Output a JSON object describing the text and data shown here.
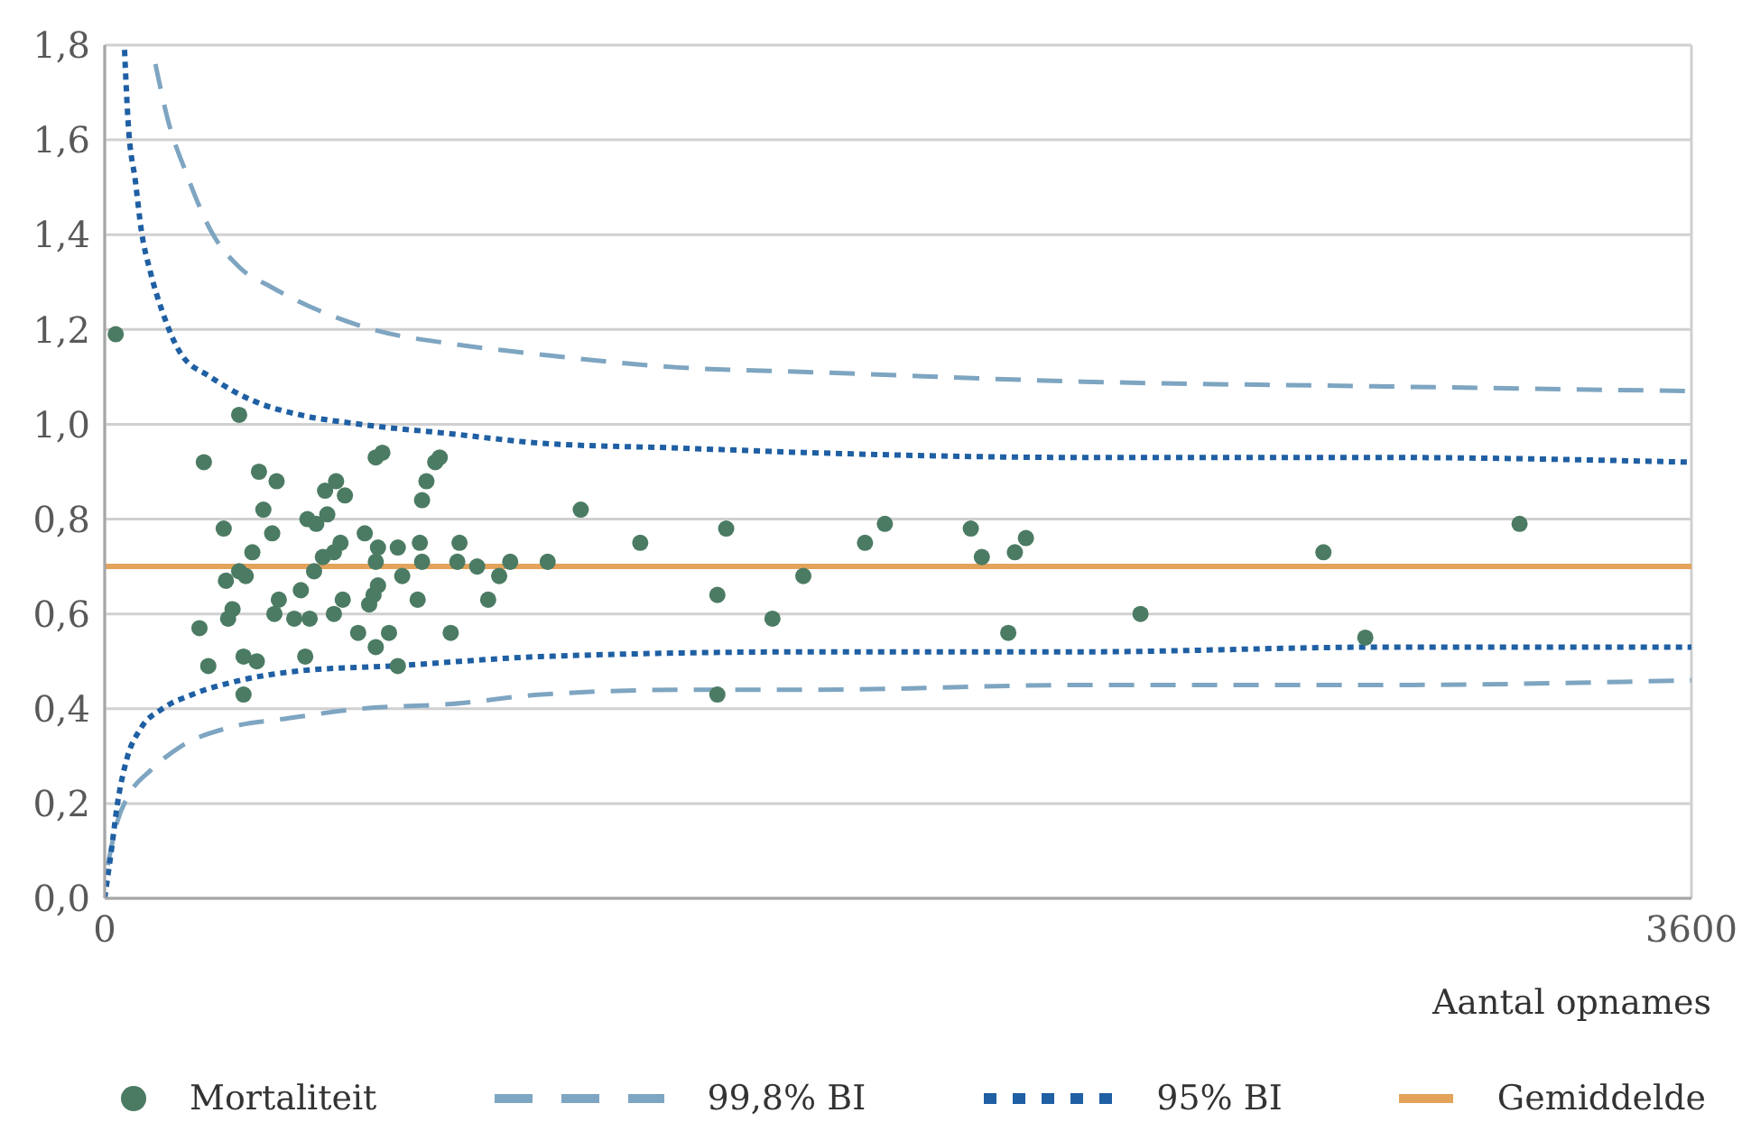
{
  "chart_data": {
    "type": "scatter",
    "xlabel": "Aantal opnames",
    "xlim": [
      0,
      3600
    ],
    "xticks": [
      0,
      3600
    ],
    "ylim": [
      0,
      1.8
    ],
    "yticks": [
      {
        "value": 0,
        "label": "0,0"
      },
      {
        "value": 0.2,
        "label": "0,2"
      },
      {
        "value": 0.4,
        "label": "0,4"
      },
      {
        "value": 0.6,
        "label": "0,6"
      },
      {
        "value": 0.8,
        "label": "0,8"
      },
      {
        "value": 1,
        "label": "1,0"
      },
      {
        "value": 1.2,
        "label": "1,2"
      },
      {
        "value": 1.4,
        "label": "1,4"
      },
      {
        "value": 1.6,
        "label": "1,6"
      },
      {
        "value": 1.8,
        "label": "1,8"
      }
    ],
    "grid": true,
    "legend": "bottom",
    "series": [
      {
        "name": "Mortaliteit",
        "marker": "circle",
        "color": "#4b7b63",
        "x": [
          25,
          305,
          225,
          270,
          275,
          215,
          235,
          280,
          290,
          305,
          320,
          315,
          315,
          345,
          335,
          350,
          360,
          380,
          390,
          385,
          395,
          430,
          445,
          455,
          460,
          480,
          465,
          475,
          495,
          500,
          505,
          525,
          545,
          520,
          535,
          520,
          540,
          575,
          590,
          615,
          630,
          620,
          615,
          600,
          610,
          620,
          615,
          645,
          665,
          665,
          675,
          710,
          720,
          730,
          750,
          760,
          715,
          720,
          785,
          805,
          800,
          845,
          870,
          895,
          920,
          1005,
          1080,
          1215,
          1390,
          1410,
          1515,
          1585,
          1390,
          1725,
          1770,
          1965,
          1990,
          2065,
          2090,
          2050,
          2350,
          2765,
          2860,
          3210
        ],
        "values": [
          1.19,
          1.02,
          0.92,
          0.78,
          0.67,
          0.57,
          0.49,
          0.59,
          0.61,
          0.69,
          0.68,
          0.51,
          0.43,
          0.5,
          0.73,
          0.9,
          0.82,
          0.77,
          0.88,
          0.6,
          0.63,
          0.59,
          0.65,
          0.51,
          0.8,
          0.79,
          0.59,
          0.69,
          0.72,
          0.86,
          0.81,
          0.88,
          0.85,
          0.73,
          0.75,
          0.6,
          0.63,
          0.56,
          0.77,
          0.93,
          0.94,
          0.74,
          0.71,
          0.62,
          0.64,
          0.66,
          0.53,
          0.56,
          0.49,
          0.74,
          0.68,
          0.63,
          0.84,
          0.88,
          0.92,
          0.93,
          0.75,
          0.71,
          0.56,
          0.75,
          0.71,
          0.7,
          0.63,
          0.68,
          0.71,
          0.71,
          0.82,
          0.75,
          0.64,
          0.78,
          0.59,
          0.68,
          0.43,
          0.75,
          0.79,
          0.78,
          0.72,
          0.73,
          0.76,
          0.56,
          0.6,
          0.73,
          0.55,
          0.79
        ]
      },
      {
        "name": "99,8% BI",
        "type": "line",
        "marker": "none",
        "line_style": "dashed",
        "color": "#7ea5c1",
        "x": [
          115,
          144,
          185,
          240,
          307,
          377,
          486,
          608,
          786,
          963,
          1300,
          1605,
          2219,
          2900,
          3600
        ],
        "values": [
          1.76,
          1.64,
          1.53,
          1.41,
          1.33,
          1.29,
          1.24,
          1.2,
          1.17,
          1.15,
          1.12,
          1.11,
          1.09,
          1.08,
          1.07
        ]
      },
      {
        "type": "line",
        "marker": "none",
        "line_style": "dashed",
        "color": "#7ea5c1",
        "x": [
          7,
          28,
          56,
          104,
          172,
          281,
          418,
          581,
          786,
          991,
          1318,
          1605,
          2219,
          2900,
          3600
        ],
        "values": [
          0.07,
          0.16,
          0.22,
          0.27,
          0.32,
          0.36,
          0.38,
          0.4,
          0.41,
          0.43,
          0.44,
          0.44,
          0.45,
          0.45,
          0.46
        ]
      },
      {
        "name": "95% BI",
        "type": "line",
        "marker": "none",
        "line_style": "dotted",
        "color": "#1f5fa3",
        "x": [
          45,
          53,
          70,
          83,
          104,
          130,
          172,
          240,
          336,
          443,
          581,
          786,
          991,
          1300,
          1605,
          2219,
          2900,
          3600
        ],
        "values": [
          1.79,
          1.64,
          1.51,
          1.41,
          1.32,
          1.24,
          1.15,
          1.1,
          1.05,
          1.02,
          1,
          0.98,
          0.96,
          0.95,
          0.94,
          0.93,
          0.93,
          0.92
        ]
      },
      {
        "type": "line",
        "marker": "none",
        "line_style": "dotted",
        "color": "#1f5fa3",
        "x": [
          0,
          15,
          29,
          49,
          83,
          131,
          199,
          308,
          444,
          649,
          991,
          1605,
          2219,
          2900,
          3600
        ],
        "values": [
          0,
          0.1,
          0.2,
          0.29,
          0.36,
          0.4,
          0.43,
          0.46,
          0.48,
          0.49,
          0.51,
          0.52,
          0.52,
          0.53,
          0.53
        ]
      }
    ],
    "ref_lines": [
      {
        "axis": "y",
        "value": 0.7,
        "label": "Gemiddelde",
        "color": "#e3a35a"
      }
    ]
  }
}
